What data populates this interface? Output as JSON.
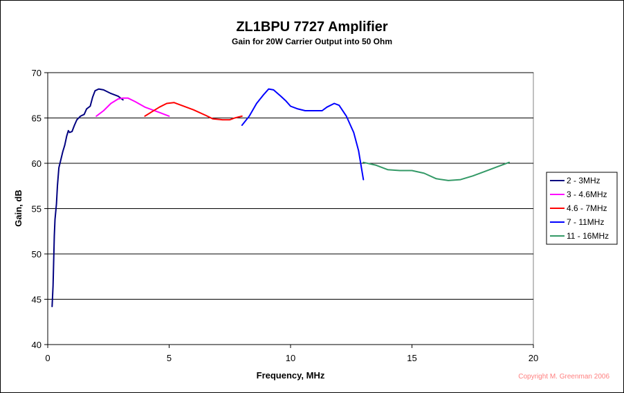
{
  "chart_data": {
    "type": "line",
    "title": "ZL1BPU 7727 Amplifier",
    "subtitle": "Gain for 20W Carrier Output into 50 Ohm",
    "xlabel": "Frequency, MHz",
    "ylabel": "Gain, dB",
    "xlim": [
      0,
      20
    ],
    "ylim": [
      40,
      70
    ],
    "x_ticks": [
      0,
      5,
      10,
      15,
      20
    ],
    "y_ticks": [
      40,
      45,
      50,
      55,
      60,
      65,
      70
    ],
    "grid": "horizontal major gridlines",
    "legend_position": "right",
    "copyright": "Copyright M. Greenman 2006",
    "series": [
      {
        "name": "2 - 3MHz",
        "color": "#000080",
        "points": [
          [
            0.18,
            44.2
          ],
          [
            0.22,
            46.5
          ],
          [
            0.27,
            52
          ],
          [
            0.3,
            53.8
          ],
          [
            0.36,
            55.5
          ],
          [
            0.4,
            57.5
          ],
          [
            0.46,
            59.5
          ],
          [
            0.55,
            60.5
          ],
          [
            0.62,
            61.3
          ],
          [
            0.7,
            62.0
          ],
          [
            0.78,
            63.0
          ],
          [
            0.85,
            63.6
          ],
          [
            0.9,
            63.4
          ],
          [
            1.0,
            63.5
          ],
          [
            1.1,
            64.2
          ],
          [
            1.2,
            64.8
          ],
          [
            1.35,
            65.2
          ],
          [
            1.5,
            65.4
          ],
          [
            1.6,
            66.0
          ],
          [
            1.75,
            66.3
          ],
          [
            1.85,
            67.3
          ],
          [
            1.95,
            68.0
          ],
          [
            2.1,
            68.2
          ],
          [
            2.3,
            68.1
          ],
          [
            2.6,
            67.7
          ],
          [
            2.9,
            67.4
          ],
          [
            3.1,
            67.0
          ]
        ]
      },
      {
        "name": "3 - 4.6MHz",
        "color": "#ff00ff",
        "points": [
          [
            2.0,
            65.2
          ],
          [
            2.3,
            65.8
          ],
          [
            2.6,
            66.6
          ],
          [
            2.9,
            67.1
          ],
          [
            3.1,
            67.2
          ],
          [
            3.3,
            67.2
          ],
          [
            3.6,
            66.8
          ],
          [
            4.0,
            66.2
          ],
          [
            4.3,
            65.9
          ],
          [
            4.6,
            65.6
          ],
          [
            5.0,
            65.2
          ]
        ]
      },
      {
        "name": "4.6 - 7MHz",
        "color": "#ff0000",
        "points": [
          [
            4.0,
            65.2
          ],
          [
            4.3,
            65.7
          ],
          [
            4.6,
            66.2
          ],
          [
            4.9,
            66.6
          ],
          [
            5.2,
            66.7
          ],
          [
            5.5,
            66.4
          ],
          [
            6.0,
            65.9
          ],
          [
            6.5,
            65.3
          ],
          [
            6.8,
            64.9
          ],
          [
            7.2,
            64.8
          ],
          [
            7.5,
            64.8
          ],
          [
            7.7,
            65.0
          ],
          [
            8.0,
            65.2
          ]
        ]
      },
      {
        "name": "7 - 11MHz",
        "color": "#0000ff",
        "points": [
          [
            8.0,
            64.2
          ],
          [
            8.3,
            65.2
          ],
          [
            8.6,
            66.6
          ],
          [
            8.9,
            67.6
          ],
          [
            9.1,
            68.2
          ],
          [
            9.3,
            68.1
          ],
          [
            9.6,
            67.4
          ],
          [
            9.8,
            66.9
          ],
          [
            10.0,
            66.3
          ],
          [
            10.3,
            66.0
          ],
          [
            10.6,
            65.8
          ],
          [
            11.0,
            65.8
          ],
          [
            11.3,
            65.8
          ],
          [
            11.5,
            66.2
          ],
          [
            11.8,
            66.6
          ],
          [
            12.0,
            66.4
          ],
          [
            12.3,
            65.2
          ],
          [
            12.6,
            63.4
          ],
          [
            12.8,
            61.4
          ],
          [
            13.0,
            58.2
          ]
        ]
      },
      {
        "name": "11 - 16MHz",
        "color": "#339966",
        "points": [
          [
            13.0,
            60.1
          ],
          [
            13.5,
            59.8
          ],
          [
            14.0,
            59.3
          ],
          [
            14.5,
            59.2
          ],
          [
            15.0,
            59.2
          ],
          [
            15.5,
            58.9
          ],
          [
            16.0,
            58.3
          ],
          [
            16.5,
            58.1
          ],
          [
            17.0,
            58.2
          ],
          [
            17.5,
            58.6
          ],
          [
            18.0,
            59.1
          ],
          [
            18.5,
            59.6
          ],
          [
            19.0,
            60.1
          ]
        ]
      }
    ]
  }
}
